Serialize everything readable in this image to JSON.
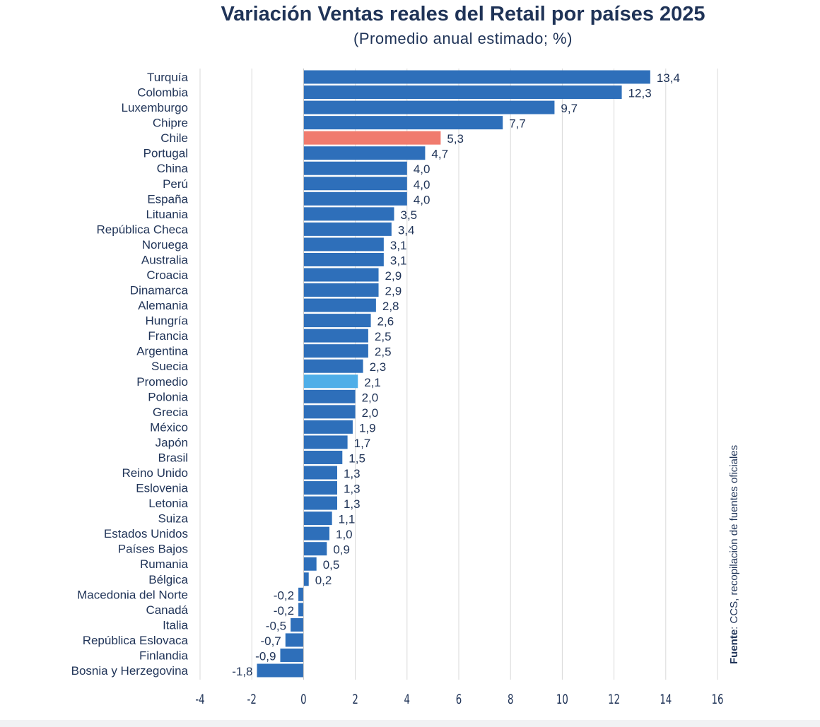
{
  "chart_data": {
    "type": "bar",
    "orientation": "horizontal",
    "title": "Variación Ventas reales del Retail por países 2025",
    "subtitle": "(Promedio anual estimado; %)",
    "categories": [
      "Turquía",
      "Colombia",
      "Luxemburgo",
      "Chipre",
      "Chile",
      "Portugal",
      "China",
      "Perú",
      "España",
      "Lituania",
      "República Checa",
      "Noruega",
      "Australia",
      "Croacia",
      "Dinamarca",
      "Alemania",
      "Hungría",
      "Francia",
      "Argentina",
      "Suecia",
      "Promedio",
      "Polonia",
      "Grecia",
      "México",
      "Japón",
      "Brasil",
      "Reino Unido",
      "Eslovenia",
      "Letonia",
      "Suiza",
      "Estados Unidos",
      "Países Bajos",
      "Rumania",
      "Bélgica",
      "Macedonia del Norte",
      "Canadá",
      "Italia",
      "República Eslovaca",
      "Finlandia",
      "Bosnia y Herzegovina"
    ],
    "values": [
      13.4,
      12.3,
      9.7,
      7.7,
      5.3,
      4.7,
      4.0,
      4.0,
      4.0,
      3.5,
      3.4,
      3.1,
      3.1,
      2.9,
      2.9,
      2.8,
      2.6,
      2.5,
      2.5,
      2.3,
      2.1,
      2.0,
      2.0,
      1.9,
      1.7,
      1.5,
      1.3,
      1.3,
      1.3,
      1.1,
      1.0,
      0.9,
      0.5,
      0.2,
      -0.2,
      -0.2,
      -0.5,
      -0.7,
      -0.9,
      -1.8
    ],
    "data_labels": [
      "13,4",
      "12,3",
      "9,7",
      "7,7",
      "5,3",
      "4,7",
      "4,0",
      "4,0",
      "4,0",
      "3,5",
      "3,4",
      "3,1",
      "3,1",
      "2,9",
      "2,9",
      "2,8",
      "2,6",
      "2,5",
      "2,5",
      "2,3",
      "2,1",
      "2,0",
      "2,0",
      "1,9",
      "1,7",
      "1,5",
      "1,3",
      "1,3",
      "1,3",
      "1,1",
      "1,0",
      "0,9",
      "0,5",
      "0,2",
      "-0,2",
      "-0,2",
      "-0,5",
      "-0,7",
      "-0,9",
      "-1,8"
    ],
    "xlim": [
      -4,
      16
    ],
    "xticks": [
      "-4",
      "-2",
      "0",
      "2",
      "4",
      "6",
      "8",
      "10",
      "12",
      "14",
      "16"
    ],
    "grid": "vertical",
    "colors": {
      "default": "#2e6fba",
      "highlight": {
        "Chile": "#f07b6e",
        "Promedio": "#4eaee8"
      },
      "text": "#1f3357",
      "grid": "#d9d9d9"
    }
  },
  "source": {
    "label": "Fuente",
    "text": ": CCS, recopilación de fuentes oficiales"
  }
}
